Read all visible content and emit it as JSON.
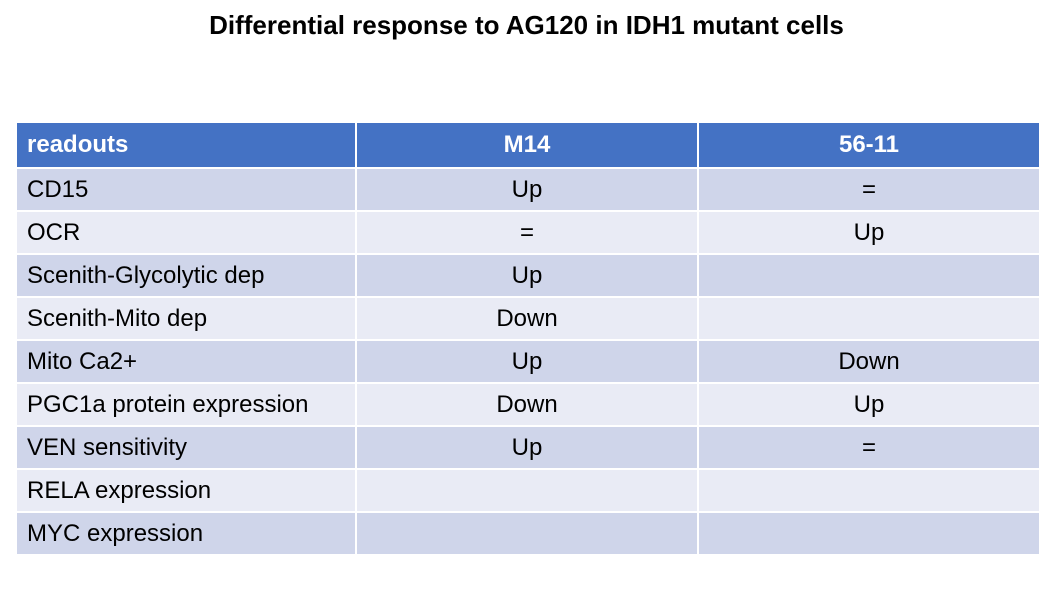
{
  "title": "Differential response to AG120 in IDH1 mutant cells",
  "colors": {
    "header_bg": "#4472c4",
    "header_text": "#ffffff",
    "row_odd_bg": "#cfd5ea",
    "row_even_bg": "#e9ebf5"
  },
  "table": {
    "headers": [
      "readouts",
      "M14",
      "56-11"
    ],
    "rows": [
      {
        "readout": "CD15",
        "m14": "Up",
        "c5611": "="
      },
      {
        "readout": "OCR",
        "m14": "=",
        "c5611": "Up"
      },
      {
        "readout": "Scenith-Glycolytic dep",
        "m14": "Up",
        "c5611": ""
      },
      {
        "readout": "Scenith-Mito dep",
        "m14": "Down",
        "c5611": ""
      },
      {
        "readout": "Mito Ca2+",
        "m14": "Up",
        "c5611": "Down"
      },
      {
        "readout": "PGC1a protein expression",
        "m14": "Down",
        "c5611": "Up"
      },
      {
        "readout": "VEN sensitivity",
        "m14": "Up",
        "c5611": "="
      },
      {
        "readout": "RELA expression",
        "m14": "",
        "c5611": ""
      },
      {
        "readout": "MYC expression",
        "m14": "",
        "c5611": ""
      }
    ]
  }
}
